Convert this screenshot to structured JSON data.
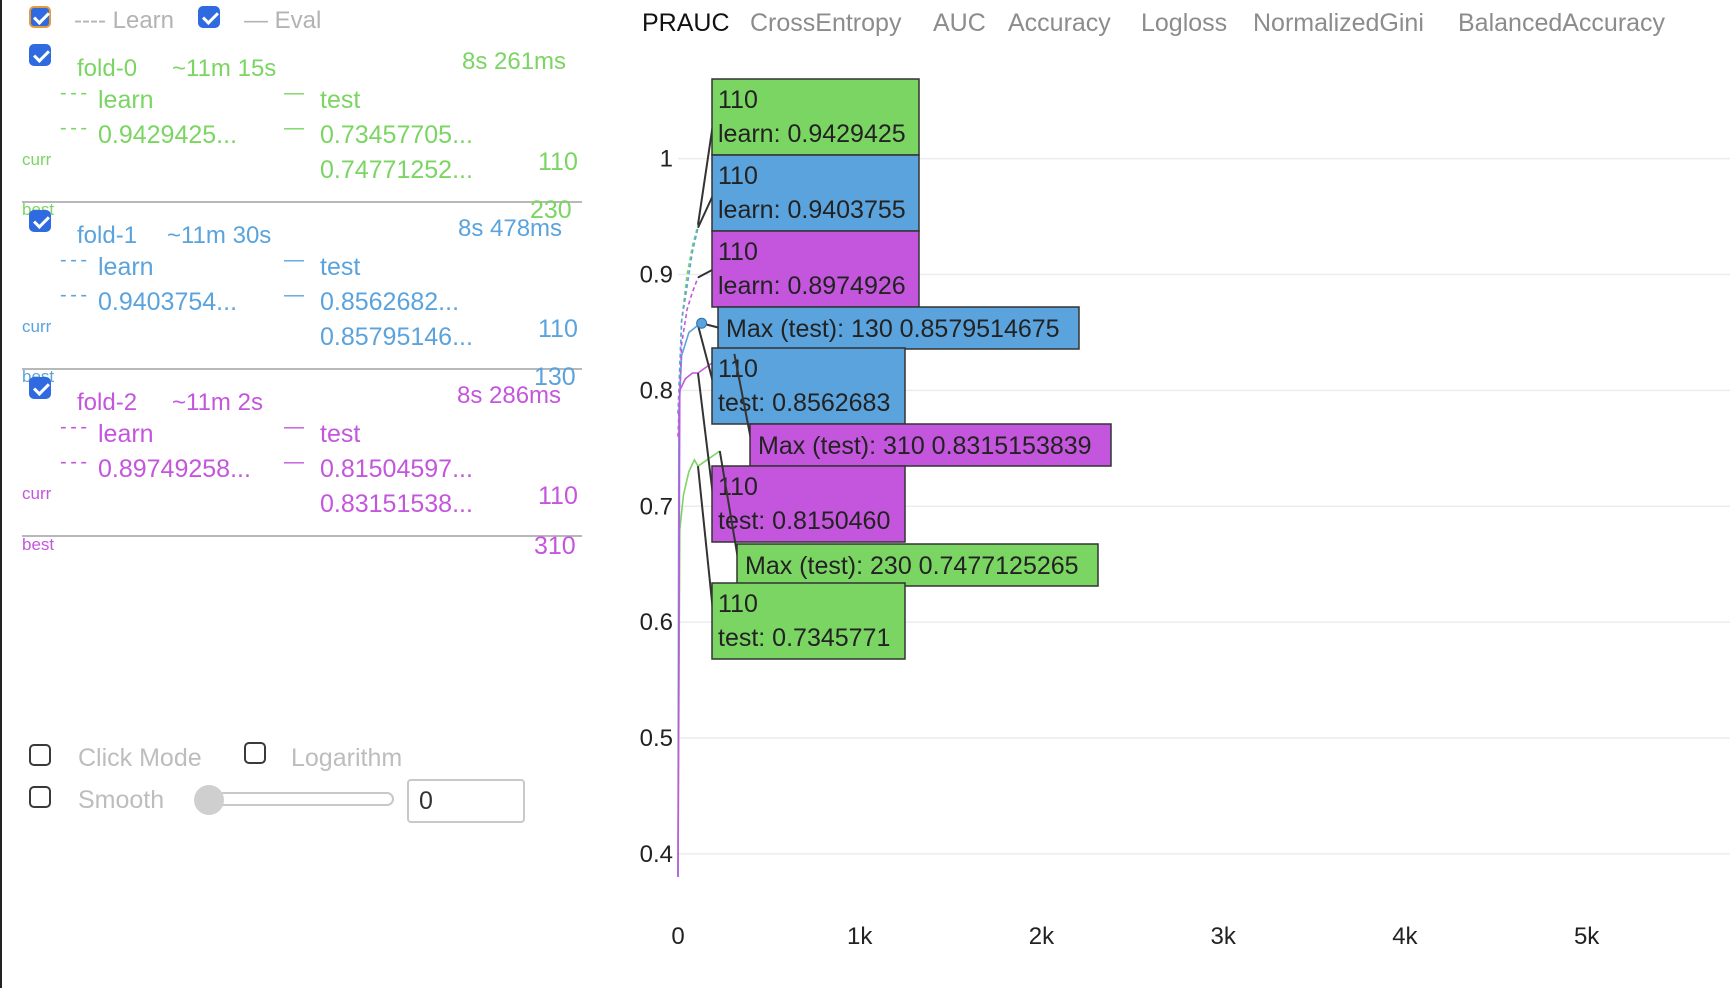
{
  "legend": {
    "learn_label": "---- Learn",
    "eval_label": "— Eval"
  },
  "colors": {
    "fold0": "#7bd563",
    "fold1": "#5ba3dc",
    "fold2": "#c456dd"
  },
  "folds": [
    {
      "title": "fold-0",
      "eta": "~11m 15s",
      "duration": "8s 261ms",
      "learn_header": "learn",
      "test_header": "test",
      "learn_value": "0.9429425...",
      "test_value": "0.73457705...",
      "best_value": "0.74771252...",
      "curr_label": "curr",
      "best_label": "best",
      "curr_iter": "110",
      "best_iter": "230"
    },
    {
      "title": "fold-1",
      "eta": "~11m 30s",
      "duration": "8s 478ms",
      "learn_header": "learn",
      "test_header": "test",
      "learn_value": "0.9403754...",
      "test_value": "0.8562682...",
      "best_value": "0.85795146...",
      "curr_label": "curr",
      "best_label": "best",
      "curr_iter": "110",
      "best_iter": "130"
    },
    {
      "title": "fold-2",
      "eta": "~11m 2s",
      "duration": "8s 286ms",
      "learn_header": "learn",
      "test_header": "test",
      "learn_value": "0.89749258...",
      "test_value": "0.81504597...",
      "best_value": "0.83151538...",
      "curr_label": "curr",
      "best_label": "best",
      "curr_iter": "110",
      "best_iter": "310"
    }
  ],
  "controls": {
    "click_mode": "Click Mode",
    "logarithm": "Logarithm",
    "smooth": "Smooth",
    "smooth_value": "0"
  },
  "tabs": [
    "PRAUC",
    "CrossEntropy",
    "AUC",
    "Accuracy",
    "Logloss",
    "NormalizedGini",
    "BalancedAccuracy"
  ],
  "chart_data": {
    "type": "line",
    "title": "",
    "xlabel": "",
    "ylabel": "",
    "x_ticks": [
      "0",
      "1k",
      "2k",
      "3k",
      "4k",
      "5k"
    ],
    "y_ticks": [
      "0.4",
      "0.5",
      "0.6",
      "0.7",
      "0.8",
      "0.9",
      "1"
    ],
    "xlim": [
      0,
      5800
    ],
    "ylim": [
      0.38,
      1.08
    ],
    "series": [
      {
        "name": "fold-0 learn",
        "style": "dashed",
        "color": "#7bd563",
        "x": [
          0,
          20,
          50,
          80,
          110
        ],
        "y": [
          0.78,
          0.86,
          0.9,
          0.925,
          0.9429425
        ]
      },
      {
        "name": "fold-0 test",
        "style": "solid",
        "color": "#7bd563",
        "x": [
          0,
          10,
          30,
          60,
          90,
          110,
          230
        ],
        "y": [
          0.38,
          0.68,
          0.71,
          0.73,
          0.74,
          0.7345771,
          0.7477125265
        ]
      },
      {
        "name": "fold-1 learn",
        "style": "dashed",
        "color": "#5ba3dc",
        "x": [
          0,
          20,
          50,
          80,
          110
        ],
        "y": [
          0.78,
          0.86,
          0.89,
          0.92,
          0.9403755
        ]
      },
      {
        "name": "fold-1 test",
        "style": "solid",
        "color": "#5ba3dc",
        "x": [
          0,
          5,
          20,
          60,
          110,
          130
        ],
        "y": [
          0.38,
          0.78,
          0.83,
          0.85,
          0.8562683,
          0.8579514675
        ]
      },
      {
        "name": "fold-2 learn",
        "style": "dashed",
        "color": "#c456dd",
        "x": [
          0,
          20,
          50,
          80,
          110
        ],
        "y": [
          0.76,
          0.84,
          0.87,
          0.885,
          0.8974926
        ]
      },
      {
        "name": "fold-2 test",
        "style": "solid",
        "color": "#c456dd",
        "x": [
          0,
          10,
          40,
          80,
          110,
          200,
          310
        ],
        "y": [
          0.38,
          0.8,
          0.81,
          0.815,
          0.815046,
          0.825,
          0.8315153839
        ]
      }
    ],
    "annotations": [
      {
        "iter": "110",
        "text": "learn: 0.9429425",
        "color": "#7bd563",
        "x": 110,
        "y": 0.9429425
      },
      {
        "iter": "110",
        "text": "learn: 0.9403755",
        "color": "#5ba3dc",
        "x": 110,
        "y": 0.9403755
      },
      {
        "iter": "110",
        "text": "learn: 0.8974926",
        "color": "#c456dd",
        "x": 110,
        "y": 0.8974926
      },
      {
        "iter": "",
        "text": "Max (test): 130 0.8579514675",
        "color": "#5ba3dc",
        "x": 130,
        "y": 0.8579514675
      },
      {
        "iter": "110",
        "text": "test: 0.8562683",
        "color": "#5ba3dc",
        "x": 110,
        "y": 0.8562683
      },
      {
        "iter": "",
        "text": "Max (test): 310 0.8315153839",
        "color": "#c456dd",
        "x": 310,
        "y": 0.8315153839
      },
      {
        "iter": "110",
        "text": "test: 0.8150460",
        "color": "#c456dd",
        "x": 110,
        "y": 0.815046
      },
      {
        "iter": "",
        "text": "Max (test): 230 0.7477125265",
        "color": "#7bd563",
        "x": 230,
        "y": 0.7477125265
      },
      {
        "iter": "110",
        "text": "test: 0.7345771",
        "color": "#7bd563",
        "x": 110,
        "y": 0.7345771
      }
    ]
  }
}
